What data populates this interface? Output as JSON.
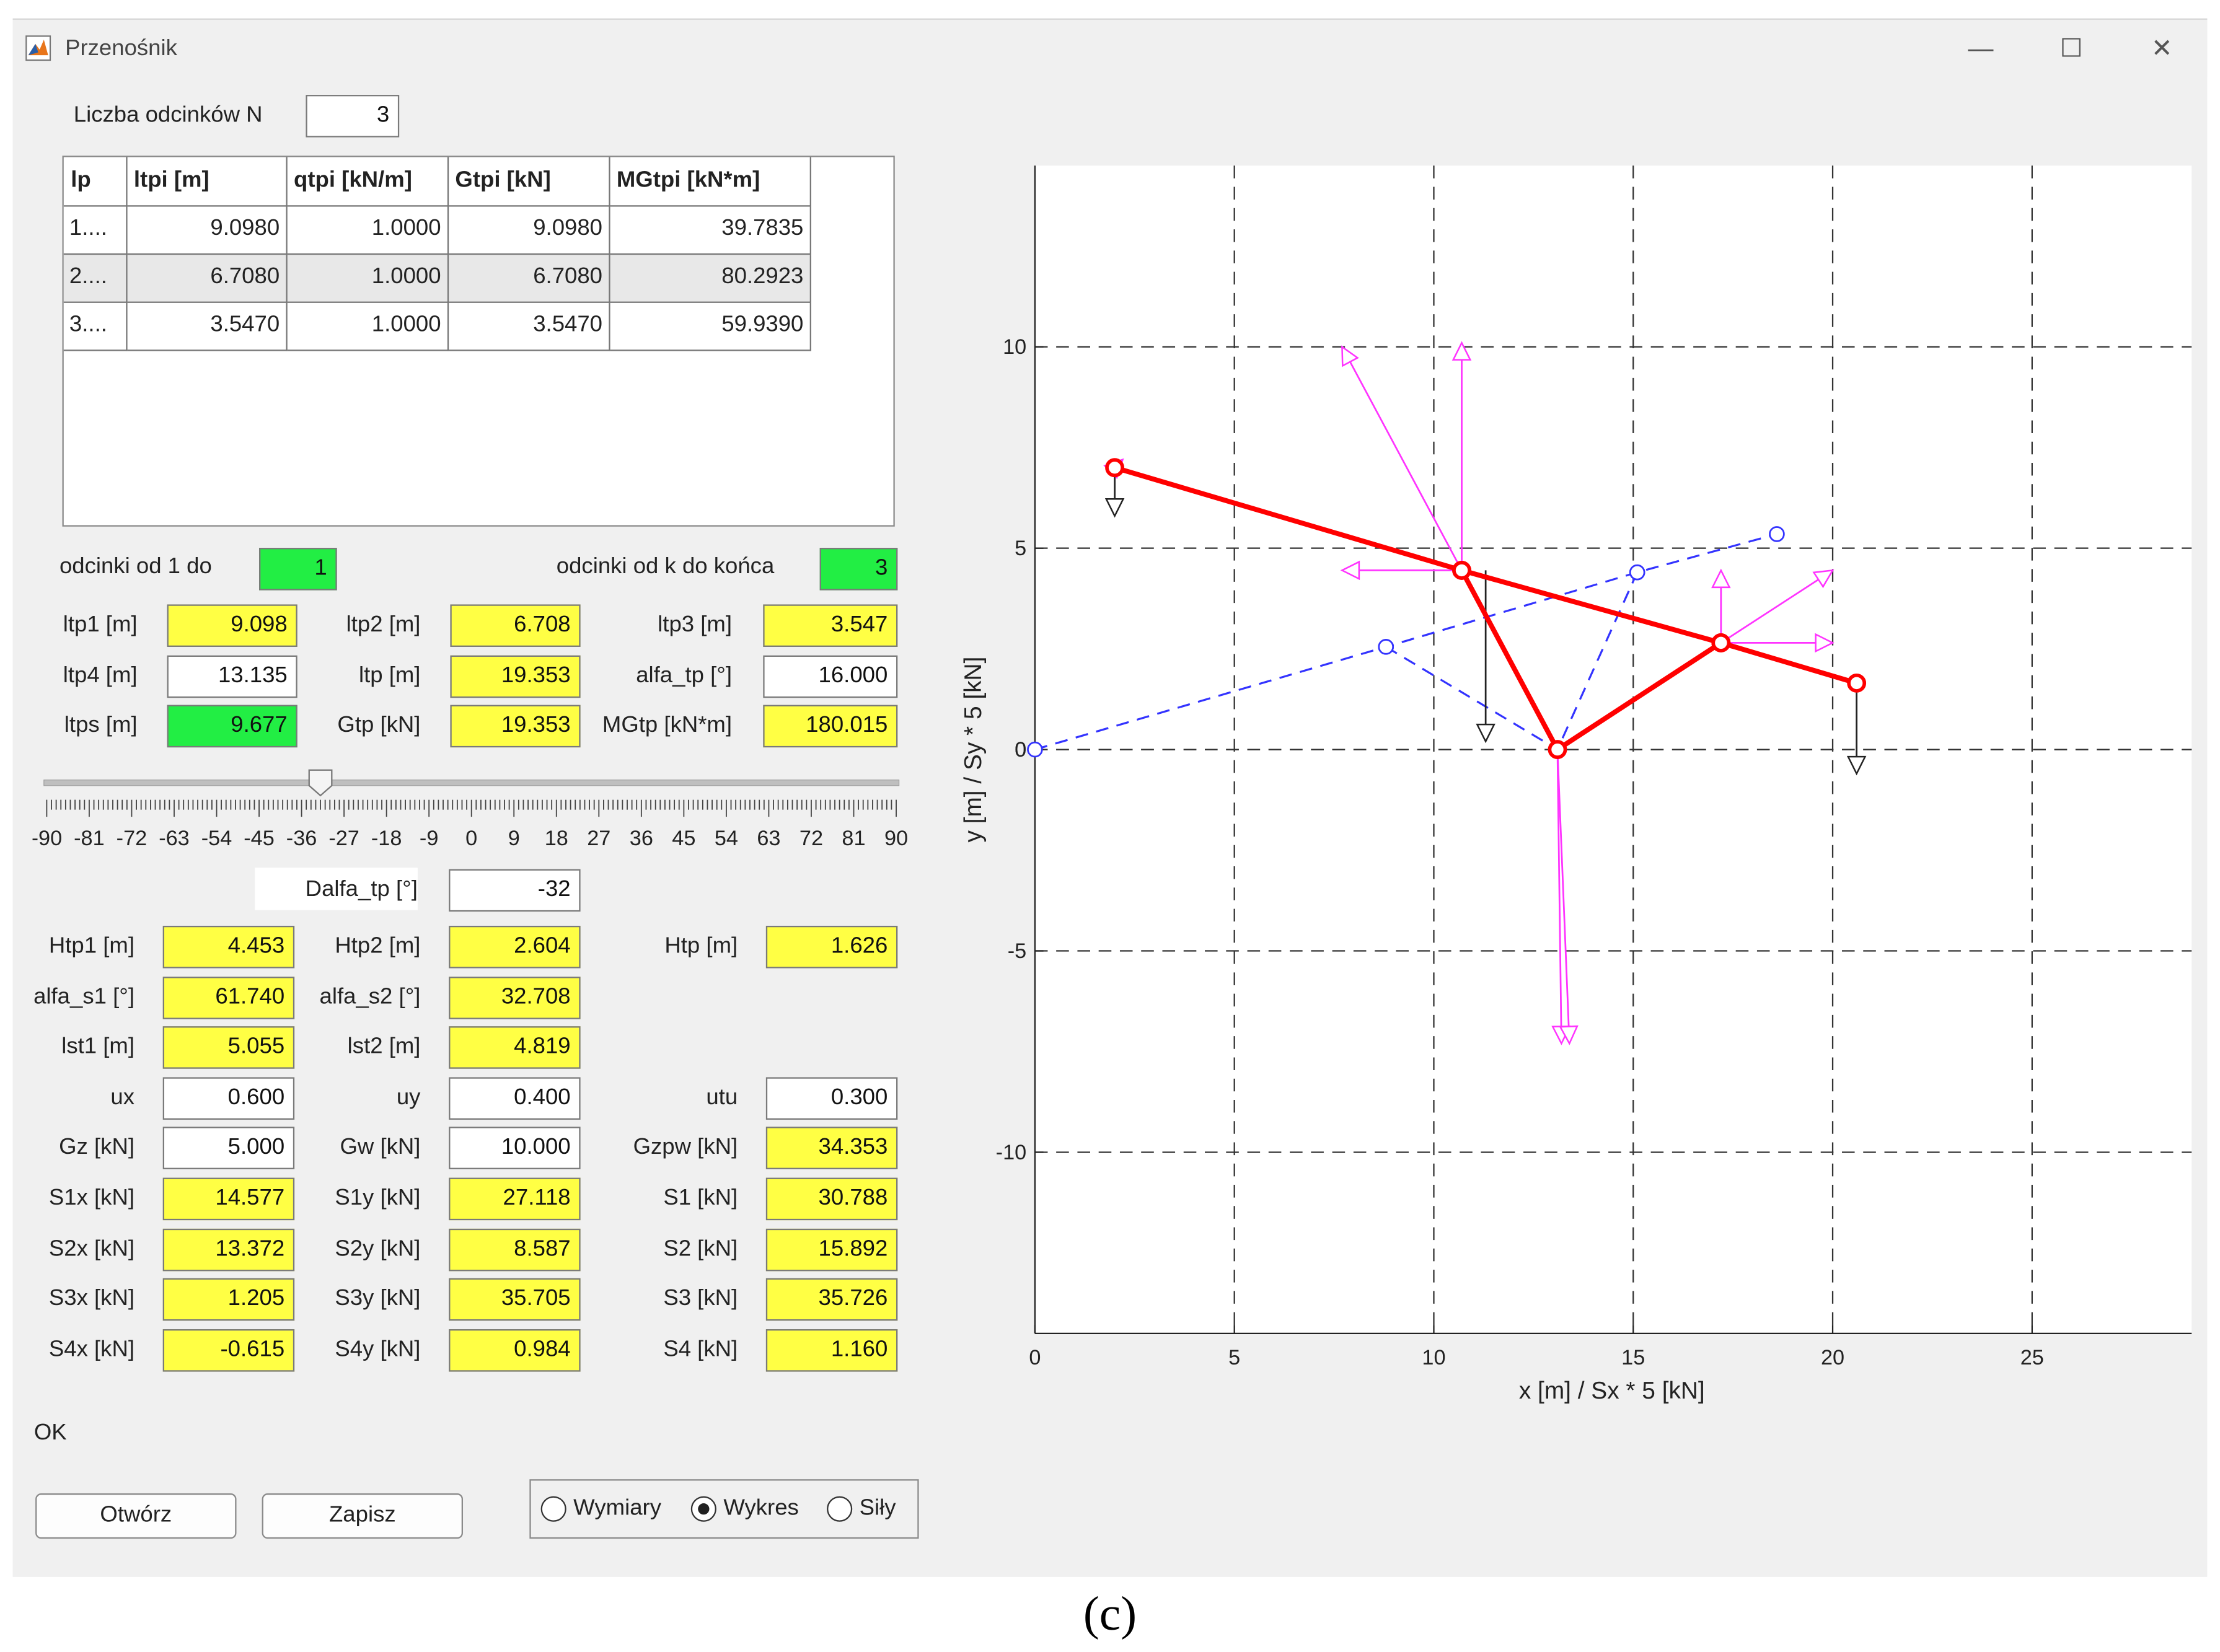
{
  "window": {
    "title": "Przenośnik",
    "minimize": "—",
    "maximize": "☐",
    "close": "✕"
  },
  "n": {
    "label": "Liczba odcinków N",
    "value": "3"
  },
  "table": {
    "headers": [
      "lp",
      "ltpi [m]",
      "qtpi [kN/m]",
      "Gtpi [kN]",
      "MGtpi [kN*m]"
    ],
    "rows": [
      [
        "1....",
        "9.0980",
        "1.0000",
        "9.0980",
        "39.7835"
      ],
      [
        "2....",
        "6.7080",
        "1.0000",
        "6.7080",
        "80.2923"
      ],
      [
        "3....",
        "3.5470",
        "1.0000",
        "3.5470",
        "59.9390"
      ]
    ]
  },
  "segments": {
    "from_label": "odcinki od 1 do",
    "from_value": "1",
    "to_label": "odcinki od k do końca",
    "to_value": "3"
  },
  "params": {
    "ltp1_label": "ltp1 [m]",
    "ltp1": "9.098",
    "ltp2_label": "ltp2 [m]",
    "ltp2": "6.708",
    "ltp3_label": "ltp3 [m]",
    "ltp3": "3.547",
    "ltp4_label": "ltp4 [m]",
    "ltp4": "13.135",
    "ltp_label": "ltp [m]",
    "ltp": "19.353",
    "alfa_label": "alfa_tp [°]",
    "alfa": "16.000",
    "ltps_label": "ltps [m]",
    "ltps": "9.677",
    "gtp_label": "Gtp [kN]",
    "gtp": "19.353",
    "mgtp_label": "MGtp [kN*m]",
    "mgtp": "180.015"
  },
  "slider": {
    "ticks": [
      "-90",
      "-81",
      "-72",
      "-63",
      "-54",
      "-45",
      "-36",
      "-27",
      "-18",
      "-9",
      "0",
      "9",
      "18",
      "27",
      "36",
      "45",
      "54",
      "63",
      "72",
      "81",
      "90"
    ],
    "min": -90,
    "max": 90,
    "value": -32
  },
  "dalfa": {
    "label": "Dalfa_tp [°]",
    "value": "-32"
  },
  "results": {
    "htp1_label": "Htp1 [m]",
    "htp1": "4.453",
    "htp2_label": "Htp2 [m]",
    "htp2": "2.604",
    "htp_label": "Htp [m]",
    "htp": "1.626",
    "as1_label": "alfa_s1 [°]",
    "as1": "61.740",
    "as2_label": "alfa_s2 [°]",
    "as2": "32.708",
    "lst1_label": "lst1 [m]",
    "lst1": "5.055",
    "lst2_label": "lst2 [m]",
    "lst2": "4.819",
    "ux_label": "ux",
    "ux": "0.600",
    "uy_label": "uy",
    "uy": "0.400",
    "utu_label": "utu",
    "utu": "0.300",
    "gz_label": "Gz [kN]",
    "gz": "5.000",
    "gw_label": "Gw [kN]",
    "gw": "10.000",
    "gzpw_label": "Gzpw [kN]",
    "gzpw": "34.353",
    "s1x_label": "S1x [kN]",
    "s1x": "14.577",
    "s1y_label": "S1y [kN]",
    "s1y": "27.118",
    "s1_label": "S1 [kN]",
    "s1": "30.788",
    "s2x_label": "S2x [kN]",
    "s2x": "13.372",
    "s2y_label": "S2y [kN]",
    "s2y": "8.587",
    "s2_label": "S2 [kN]",
    "s2": "15.892",
    "s3x_label": "S3x [kN]",
    "s3x": "1.205",
    "s3y_label": "S3y [kN]",
    "s3y": "35.705",
    "s3_label": "S3 [kN]",
    "s3": "35.726",
    "s4x_label": "S4x [kN]",
    "s4x": "-0.615",
    "s4y_label": "S4y [kN]",
    "s4y": "0.984",
    "s4_label": "S4 [kN]",
    "s4": "1.160"
  },
  "status": "OK",
  "buttons": {
    "open": "Otwórz",
    "save": "Zapisz"
  },
  "view": {
    "options": [
      "Wymiary",
      "Wykres",
      "Siły"
    ],
    "selected": "Wykres"
  },
  "caption": "(c)",
  "colors": {
    "yellow": "#ffff44",
    "green": "#22ee44",
    "red": "#ff0000",
    "blue": "#3333ff",
    "magenta": "#ff33ff",
    "black": "#222222"
  },
  "chart_data": {
    "type": "line",
    "xlabel": "x [m] / Sx * 5 [kN]",
    "ylabel": "y [m] / Sy * 5 [kN]",
    "xlim": [
      0,
      29
    ],
    "ylim": [
      -14.5,
      14.5
    ],
    "xticks": [
      "0",
      "5",
      "10",
      "15",
      "20",
      "25"
    ],
    "yticks": [
      "-10",
      "-5",
      "0",
      "5",
      "10"
    ],
    "grid": true,
    "series": [
      {
        "style": "red-solid",
        "x": [
          2.0,
          10.7,
          13.1,
          17.2,
          20.6
        ],
        "y": [
          7.0,
          4.45,
          0.0,
          2.65,
          1.65
        ]
      },
      {
        "style": "red-solid",
        "x": [
          10.7,
          17.2
        ],
        "y": [
          4.45,
          2.65
        ]
      },
      {
        "style": "blue-dashed",
        "x": [
          0.0,
          8.8,
          15.1,
          18.6
        ],
        "y": [
          0.0,
          2.55,
          4.4,
          5.35
        ]
      },
      {
        "style": "blue-dashed",
        "x": [
          8.8,
          13.1,
          15.1
        ],
        "y": [
          2.55,
          0.0,
          4.4
        ]
      }
    ],
    "arrows": [
      {
        "color": "black",
        "from": [
          2.0,
          7.0
        ],
        "to": [
          2.0,
          5.8
        ]
      },
      {
        "color": "black",
        "from": [
          11.3,
          4.45
        ],
        "to": [
          11.3,
          0.2
        ]
      },
      {
        "color": "black",
        "from": [
          20.6,
          1.65
        ],
        "to": [
          20.6,
          -0.6
        ]
      },
      {
        "color": "magenta",
        "from": [
          2.0,
          7.0
        ],
        "to": [
          2.2,
          7.2
        ]
      },
      {
        "color": "magenta",
        "from": [
          10.7,
          4.45
        ],
        "to": [
          7.7,
          10.0
        ]
      },
      {
        "color": "magenta",
        "from": [
          10.7,
          4.45
        ],
        "to": [
          10.7,
          10.1
        ]
      },
      {
        "color": "magenta",
        "from": [
          10.7,
          4.45
        ],
        "to": [
          7.7,
          4.45
        ]
      },
      {
        "color": "magenta",
        "from": [
          13.1,
          0.0
        ],
        "to": [
          13.2,
          -7.3
        ]
      },
      {
        "color": "magenta",
        "from": [
          13.1,
          0.0
        ],
        "to": [
          13.4,
          -7.3
        ]
      },
      {
        "color": "magenta",
        "from": [
          17.2,
          2.65
        ],
        "to": [
          17.2,
          4.45
        ]
      },
      {
        "color": "magenta",
        "from": [
          17.2,
          2.65
        ],
        "to": [
          20.0,
          4.45
        ]
      },
      {
        "color": "magenta",
        "from": [
          17.2,
          2.65
        ],
        "to": [
          20.0,
          2.65
        ]
      }
    ]
  }
}
